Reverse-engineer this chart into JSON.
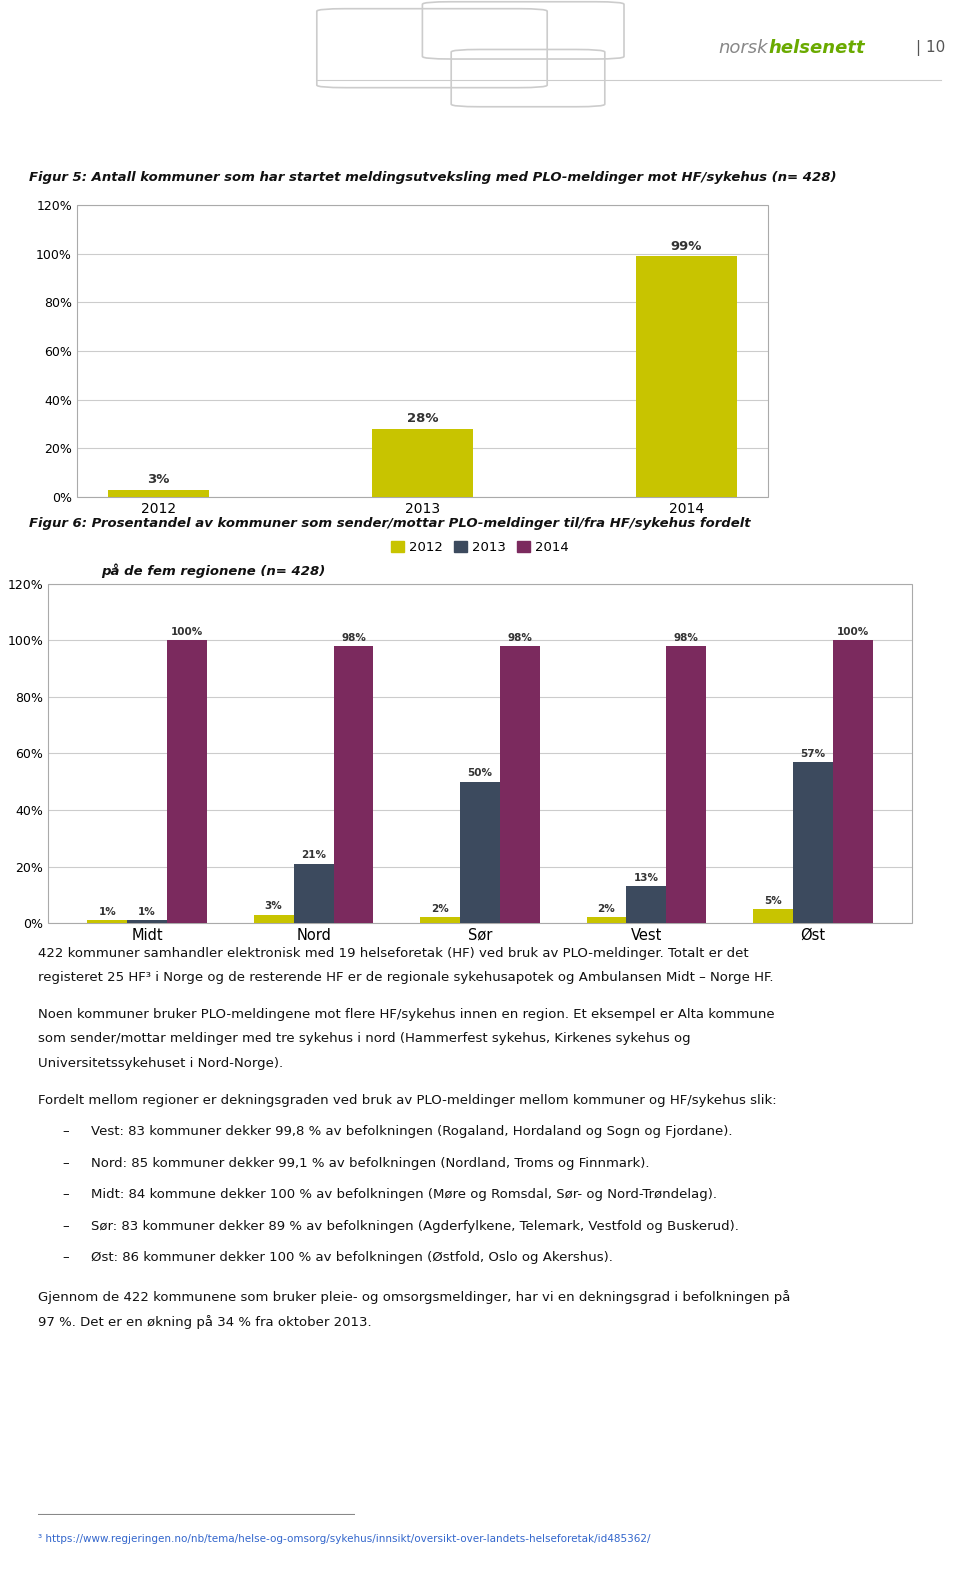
{
  "fig5_title": "Figur 5: Antall kommuner som har startet meldingsutveksling med PLO-meldinger mot HF/sykehus (n= 428)",
  "fig5_years": [
    "2012",
    "2013",
    "2014"
  ],
  "fig5_values": [
    3,
    28,
    99
  ],
  "fig5_bar_color": "#c8c400",
  "fig5_ylim": [
    0,
    120
  ],
  "fig5_yticks": [
    0,
    20,
    40,
    60,
    80,
    100,
    120
  ],
  "fig5_ytick_labels": [
    "0%",
    "20%",
    "40%",
    "60%",
    "80%",
    "100%",
    "120%"
  ],
  "fig6_title_line1": "Figur 6: Prosentandel av kommuner som sender/mottar PLO-meldinger til/fra HF/sykehus fordelt",
  "fig6_title_line2": "på de fem regionene (n= 428)",
  "fig6_regions": [
    "Midt",
    "Nord",
    "Sør",
    "Vest",
    "Øst"
  ],
  "fig6_2012": [
    1,
    3,
    2,
    2,
    5
  ],
  "fig6_2013": [
    1,
    21,
    50,
    13,
    57
  ],
  "fig6_2014": [
    100,
    98,
    98,
    98,
    100
  ],
  "fig6_color_2012": "#c8c400",
  "fig6_color_2013": "#3c4a5e",
  "fig6_color_2014": "#7b2a5e",
  "fig6_ylim": [
    0,
    120
  ],
  "fig6_yticks": [
    0,
    20,
    40,
    60,
    80,
    100,
    120
  ],
  "fig6_ytick_labels": [
    "0%",
    "20%",
    "40%",
    "60%",
    "80%",
    "100%",
    "120%"
  ],
  "body_para1_line1": "422 kommuner samhandler elektronisk med 19 helseforetak (HF) ved bruk av PLO-meldinger. Totalt er det",
  "body_para1_line2": "registeret 25 HF³ i Norge og de resterende HF er de regionale sykehusapotek og Ambulansen Midt – Norge HF.",
  "body_para2_line1": "Noen kommuner bruker PLO-meldingene mot flere HF/sykehus innen en region. Et eksempel er Alta kommune",
  "body_para2_line2": "som sender/mottar meldinger med tre sykehus i nord (Hammerfest sykehus, Kirkenes sykehus og",
  "body_para2_line3": "Universitetssykehuset i Nord-Norge).",
  "body_para3": "Fordelt mellom regioner er dekningsgraden ved bruk av PLO-meldinger mellom kommuner og HF/sykehus slik:",
  "bullets": [
    "Vest: 83 kommuner dekker 99,8 % av befolkningen (Rogaland, Hordaland og Sogn og Fjordane).",
    "Nord: 85 kommuner dekker 99,1 % av befolkningen (Nordland, Troms og Finnmark).",
    "Midt: 84 kommune dekker 100 % av befolkningen (Møre og Romsdal, Sør- og Nord-Trøndelag).",
    "Sør: 83 kommuner dekker 89 % av befolkningen (Agderfylkene, Telemark, Vestfold og Buskerud).",
    "Øst: 86 kommuner dekker 100 % av befolkningen (Østfold, Oslo og Akershus)."
  ],
  "body_para4_line1": "Gjennom de 422 kommunene som bruker pleie- og omsorgsmeldinger, har vi en dekningsgrad i befolkningen på",
  "body_para4_line2": "97 %. Det er en økning på 34 % fra oktober 2013.",
  "footnote": "³ https://www.regjeringen.no/nb/tema/helse-og-omsorg/sykehus/innsikt/oversikt-over-landets-helseforetak/id485362/",
  "background_color": "#ffffff",
  "logo_color_norsk": "#888888",
  "logo_color_helsenett": "#6aaa00",
  "page_number": "| 10"
}
